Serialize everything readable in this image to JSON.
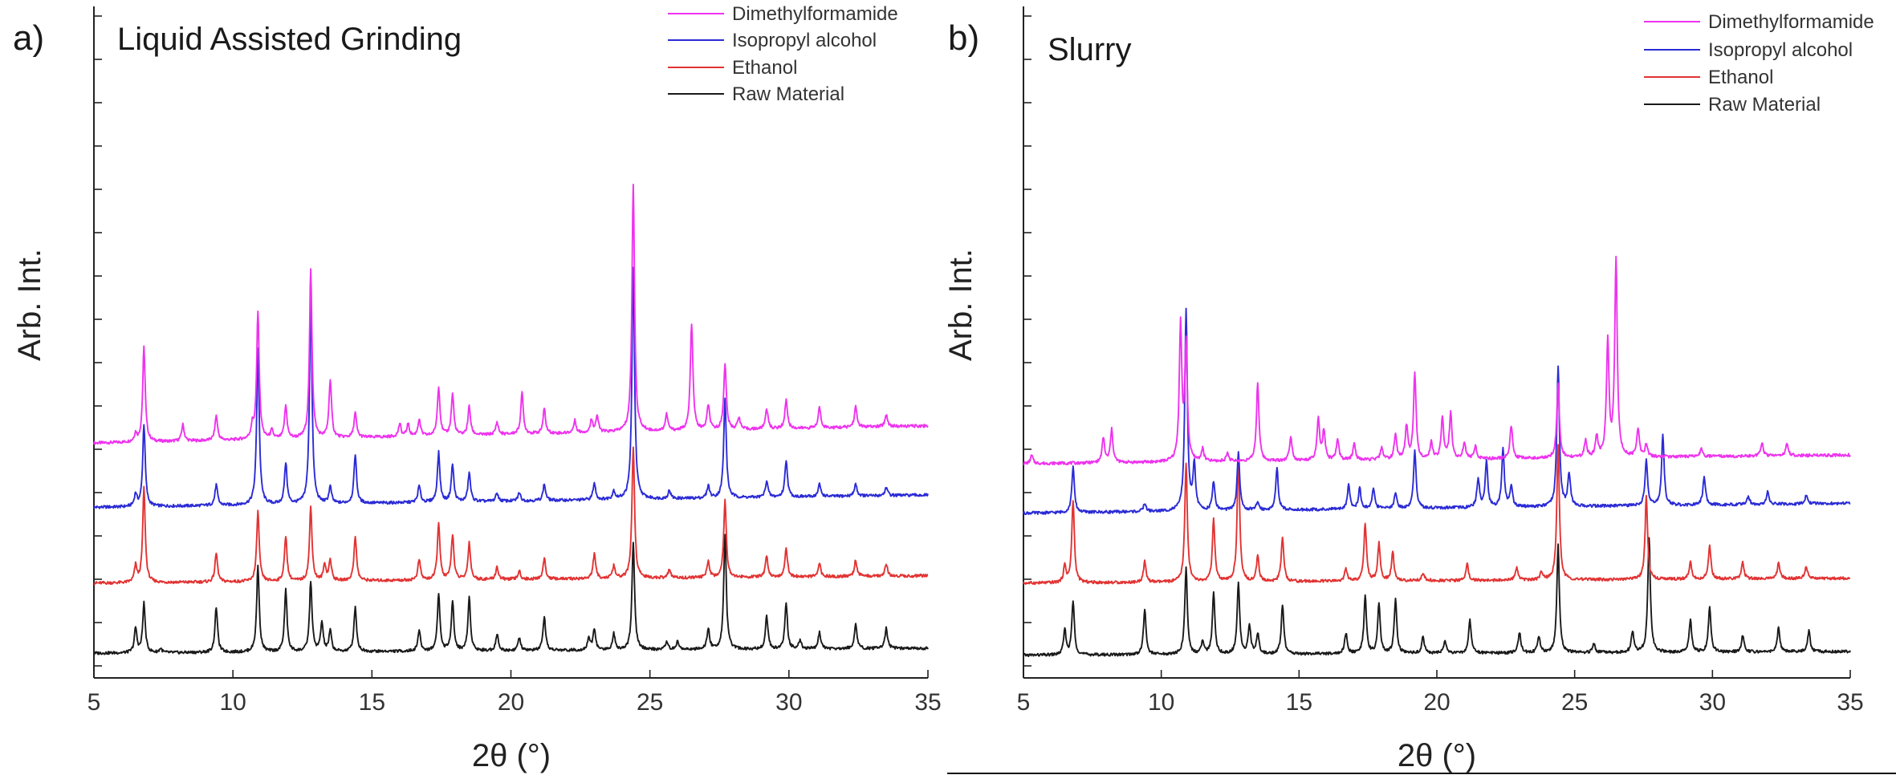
{
  "chart_data": [
    {
      "type": "line",
      "panel_label": "a)",
      "title": "Liquid Assisted Grinding",
      "xlabel": "2θ (°)",
      "ylabel": "Arb. Int.",
      "xlim": [
        5,
        35
      ],
      "x_ticks": [
        5,
        10,
        15,
        20,
        25,
        30,
        35
      ],
      "y_ticks": "unlabeled",
      "legend_position": "top-right",
      "series": [
        {
          "name": "Dimethylformamide",
          "color": "#ee33ee",
          "baseline": 0.6,
          "slope": 0.0014,
          "peaks": [
            [
              6.5,
              0.02
            ],
            [
              6.8,
              0.23
            ],
            [
              8.2,
              0.04
            ],
            [
              9.4,
              0.06
            ],
            [
              10.7,
              0.03
            ],
            [
              10.9,
              0.31
            ],
            [
              11.4,
              0.02
            ],
            [
              11.9,
              0.08
            ],
            [
              12.8,
              0.41
            ],
            [
              13.5,
              0.14
            ],
            [
              14.4,
              0.06
            ],
            [
              16.0,
              0.03
            ],
            [
              16.3,
              0.03
            ],
            [
              16.7,
              0.04
            ],
            [
              17.4,
              0.12
            ],
            [
              17.9,
              0.1
            ],
            [
              18.5,
              0.07
            ],
            [
              19.5,
              0.03
            ],
            [
              20.4,
              0.1
            ],
            [
              21.2,
              0.06
            ],
            [
              22.3,
              0.03
            ],
            [
              22.9,
              0.03
            ],
            [
              23.1,
              0.04
            ],
            [
              24.4,
              0.6
            ],
            [
              25.6,
              0.04
            ],
            [
              26.5,
              0.26
            ],
            [
              27.1,
              0.06
            ],
            [
              27.7,
              0.16
            ],
            [
              28.2,
              0.03
            ],
            [
              29.2,
              0.05
            ],
            [
              29.9,
              0.07
            ],
            [
              31.1,
              0.05
            ],
            [
              32.4,
              0.05
            ],
            [
              33.5,
              0.03
            ]
          ]
        },
        {
          "name": "Isopropyl alcohol",
          "color": "#2b2bd6",
          "baseline": 0.444,
          "slope": 0.001,
          "peaks": [
            [
              6.5,
              0.03
            ],
            [
              6.8,
              0.2
            ],
            [
              9.4,
              0.05
            ],
            [
              10.9,
              0.38
            ],
            [
              11.9,
              0.1
            ],
            [
              12.8,
              0.5
            ],
            [
              13.5,
              0.04
            ],
            [
              14.4,
              0.12
            ],
            [
              16.7,
              0.04
            ],
            [
              17.4,
              0.12
            ],
            [
              17.9,
              0.09
            ],
            [
              18.5,
              0.07
            ],
            [
              19.5,
              0.02
            ],
            [
              20.3,
              0.02
            ],
            [
              21.2,
              0.04
            ],
            [
              23.0,
              0.04
            ],
            [
              23.7,
              0.02
            ],
            [
              24.4,
              0.56
            ],
            [
              25.7,
              0.02
            ],
            [
              27.1,
              0.03
            ],
            [
              27.7,
              0.24
            ],
            [
              29.2,
              0.04
            ],
            [
              29.9,
              0.09
            ],
            [
              31.1,
              0.03
            ],
            [
              32.4,
              0.03
            ],
            [
              33.5,
              0.02
            ]
          ]
        },
        {
          "name": "Ethanol",
          "color": "#e23333",
          "baseline": 0.26,
          "slope": 0.0006,
          "peaks": [
            [
              6.5,
              0.04
            ],
            [
              6.8,
              0.23
            ],
            [
              9.4,
              0.07
            ],
            [
              10.9,
              0.17
            ],
            [
              11.9,
              0.11
            ],
            [
              12.8,
              0.18
            ],
            [
              13.3,
              0.04
            ],
            [
              13.5,
              0.05
            ],
            [
              14.4,
              0.11
            ],
            [
              16.7,
              0.05
            ],
            [
              17.4,
              0.14
            ],
            [
              17.9,
              0.11
            ],
            [
              18.5,
              0.09
            ],
            [
              19.5,
              0.03
            ],
            [
              20.3,
              0.02
            ],
            [
              21.2,
              0.05
            ],
            [
              23.0,
              0.06
            ],
            [
              23.7,
              0.03
            ],
            [
              24.4,
              0.32
            ],
            [
              25.7,
              0.02
            ],
            [
              27.1,
              0.04
            ],
            [
              27.7,
              0.19
            ],
            [
              29.2,
              0.05
            ],
            [
              29.9,
              0.07
            ],
            [
              31.1,
              0.03
            ],
            [
              32.4,
              0.04
            ],
            [
              33.5,
              0.03
            ]
          ]
        },
        {
          "name": "Raw Material",
          "color": "#1a1a1a",
          "baseline": 0.09,
          "slope": 0.0004,
          "peaks": [
            [
              6.5,
              0.06
            ],
            [
              6.8,
              0.12
            ],
            [
              7.4,
              0.01
            ],
            [
              9.4,
              0.11
            ],
            [
              10.9,
              0.21
            ],
            [
              11.9,
              0.15
            ],
            [
              12.8,
              0.17
            ],
            [
              13.2,
              0.07
            ],
            [
              13.5,
              0.05
            ],
            [
              14.4,
              0.11
            ],
            [
              16.7,
              0.05
            ],
            [
              17.4,
              0.14
            ],
            [
              17.9,
              0.12
            ],
            [
              18.5,
              0.13
            ],
            [
              19.5,
              0.04
            ],
            [
              20.3,
              0.03
            ],
            [
              21.2,
              0.08
            ],
            [
              22.8,
              0.03
            ],
            [
              23.0,
              0.05
            ],
            [
              23.7,
              0.04
            ],
            [
              24.4,
              0.26
            ],
            [
              25.6,
              0.02
            ],
            [
              26.0,
              0.02
            ],
            [
              27.1,
              0.05
            ],
            [
              27.7,
              0.28
            ],
            [
              29.2,
              0.08
            ],
            [
              29.9,
              0.11
            ],
            [
              30.4,
              0.02
            ],
            [
              31.1,
              0.04
            ],
            [
              32.4,
              0.06
            ],
            [
              33.5,
              0.05
            ]
          ]
        }
      ]
    },
    {
      "type": "line",
      "panel_label": "b)",
      "title": "Slurry",
      "xlabel": "2θ (°)",
      "ylabel": "Arb. Int.",
      "xlim": [
        5,
        35
      ],
      "x_ticks": [
        5,
        10,
        15,
        20,
        25,
        30,
        35
      ],
      "y_ticks": "unlabeled",
      "legend_position": "top-right",
      "series": [
        {
          "name": "Dimethylformamide",
          "color": "#ee33ee",
          "baseline": 0.55,
          "slope": 0.0007,
          "peaks": [
            [
              5.3,
              0.02
            ],
            [
              7.9,
              0.06
            ],
            [
              8.2,
              0.08
            ],
            [
              10.7,
              0.33
            ],
            [
              10.9,
              0.28
            ],
            [
              11.5,
              0.03
            ],
            [
              12.4,
              0.02
            ],
            [
              13.5,
              0.19
            ],
            [
              14.7,
              0.06
            ],
            [
              15.7,
              0.1
            ],
            [
              15.9,
              0.07
            ],
            [
              16.4,
              0.05
            ],
            [
              17.0,
              0.04
            ],
            [
              18.0,
              0.03
            ],
            [
              18.5,
              0.06
            ],
            [
              18.9,
              0.08
            ],
            [
              19.2,
              0.21
            ],
            [
              19.8,
              0.04
            ],
            [
              20.2,
              0.1
            ],
            [
              20.5,
              0.11
            ],
            [
              21.0,
              0.04
            ],
            [
              21.4,
              0.03
            ],
            [
              22.7,
              0.08
            ],
            [
              24.4,
              0.18
            ],
            [
              25.4,
              0.04
            ],
            [
              25.8,
              0.05
            ],
            [
              26.2,
              0.28
            ],
            [
              26.5,
              0.48
            ],
            [
              27.3,
              0.07
            ],
            [
              27.6,
              0.03
            ],
            [
              29.6,
              0.02
            ],
            [
              31.8,
              0.03
            ],
            [
              32.7,
              0.03
            ]
          ]
        },
        {
          "name": "Isopropyl alcohol",
          "color": "#2b2bd6",
          "baseline": 0.43,
          "slope": 0.0008,
          "peaks": [
            [
              6.8,
              0.11
            ],
            [
              9.4,
              0.02
            ],
            [
              10.9,
              0.49
            ],
            [
              11.2,
              0.11
            ],
            [
              11.9,
              0.07
            ],
            [
              12.8,
              0.14
            ],
            [
              13.5,
              0.02
            ],
            [
              14.2,
              0.1
            ],
            [
              16.8,
              0.06
            ],
            [
              17.2,
              0.05
            ],
            [
              17.7,
              0.05
            ],
            [
              18.5,
              0.04
            ],
            [
              19.2,
              0.14
            ],
            [
              21.5,
              0.07
            ],
            [
              21.8,
              0.11
            ],
            [
              22.4,
              0.14
            ],
            [
              22.7,
              0.05
            ],
            [
              24.4,
              0.34
            ],
            [
              24.8,
              0.08
            ],
            [
              27.6,
              0.11
            ],
            [
              28.2,
              0.17
            ],
            [
              29.7,
              0.07
            ],
            [
              31.3,
              0.02
            ],
            [
              32.0,
              0.03
            ],
            [
              33.4,
              0.02
            ]
          ]
        },
        {
          "name": "Ethanol",
          "color": "#e23333",
          "baseline": 0.26,
          "slope": 0.0004,
          "peaks": [
            [
              6.5,
              0.04
            ],
            [
              6.8,
              0.2
            ],
            [
              9.4,
              0.05
            ],
            [
              10.9,
              0.29
            ],
            [
              11.9,
              0.15
            ],
            [
              12.8,
              0.3
            ],
            [
              13.5,
              0.06
            ],
            [
              14.4,
              0.11
            ],
            [
              16.7,
              0.03
            ],
            [
              17.4,
              0.14
            ],
            [
              17.9,
              0.09
            ],
            [
              18.4,
              0.07
            ],
            [
              19.5,
              0.02
            ],
            [
              21.1,
              0.04
            ],
            [
              22.9,
              0.03
            ],
            [
              23.8,
              0.02
            ],
            [
              24.4,
              0.33
            ],
            [
              27.6,
              0.2
            ],
            [
              29.2,
              0.04
            ],
            [
              29.9,
              0.08
            ],
            [
              31.1,
              0.04
            ],
            [
              32.4,
              0.04
            ],
            [
              33.4,
              0.03
            ]
          ]
        },
        {
          "name": "Raw Material",
          "color": "#1a1a1a",
          "baseline": 0.085,
          "slope": 0.0003,
          "peaks": [
            [
              6.5,
              0.06
            ],
            [
              6.8,
              0.13
            ],
            [
              9.4,
              0.11
            ],
            [
              10.9,
              0.21
            ],
            [
              11.5,
              0.03
            ],
            [
              11.9,
              0.15
            ],
            [
              12.8,
              0.17
            ],
            [
              13.2,
              0.07
            ],
            [
              13.5,
              0.05
            ],
            [
              14.4,
              0.12
            ],
            [
              16.7,
              0.05
            ],
            [
              17.4,
              0.14
            ],
            [
              17.9,
              0.12
            ],
            [
              18.5,
              0.13
            ],
            [
              19.5,
              0.04
            ],
            [
              20.3,
              0.03
            ],
            [
              21.2,
              0.08
            ],
            [
              23.0,
              0.05
            ],
            [
              23.7,
              0.04
            ],
            [
              24.4,
              0.26
            ],
            [
              25.7,
              0.02
            ],
            [
              27.1,
              0.05
            ],
            [
              27.7,
              0.28
            ],
            [
              29.2,
              0.08
            ],
            [
              29.9,
              0.11
            ],
            [
              31.1,
              0.04
            ],
            [
              32.4,
              0.06
            ],
            [
              33.5,
              0.05
            ]
          ]
        }
      ]
    }
  ]
}
